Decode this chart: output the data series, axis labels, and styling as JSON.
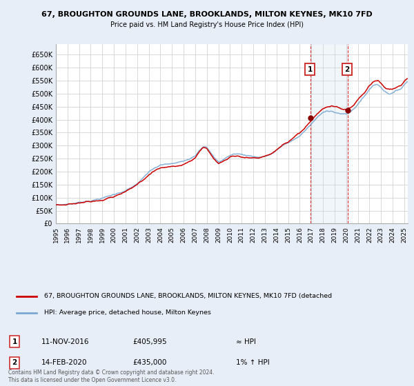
{
  "title": "67, BROUGHTON GROUNDS LANE, BROOKLANDS, MILTON KEYNES, MK10 7FD",
  "subtitle": "Price paid vs. HM Land Registry's House Price Index (HPI)",
  "ylabel_ticks": [
    "£0",
    "£50K",
    "£100K",
    "£150K",
    "£200K",
    "£250K",
    "£300K",
    "£350K",
    "£400K",
    "£450K",
    "£500K",
    "£550K",
    "£600K",
    "£650K"
  ],
  "ytick_values": [
    0,
    50000,
    100000,
    150000,
    200000,
    250000,
    300000,
    350000,
    400000,
    450000,
    500000,
    550000,
    600000,
    650000
  ],
  "ylim": [
    0,
    690000
  ],
  "hpi_color": "#7aa8d2",
  "price_color": "#cc0000",
  "background_color": "#e8eef8",
  "plot_bg_color": "#ffffff",
  "grid_color": "#cccccc",
  "x_start": 1995.0,
  "x_end": 2025.3,
  "sale1_year": 2016.917,
  "sale1_price": 405995,
  "sale2_year": 2020.12,
  "sale2_price": 435000,
  "sale1_date": "11-NOV-2016",
  "sale2_date": "14-FEB-2020",
  "sale1_label": "≈ HPI",
  "sale2_label": "1% ↑ HPI",
  "legend_line1": "67, BROUGHTON GROUNDS LANE, BROOKLANDS, MILTON KEYNES, MK10 7FD (detached",
  "legend_line2": "HPI: Average price, detached house, Milton Keynes",
  "footnote": "Contains HM Land Registry data © Crown copyright and database right 2024.\nThis data is licensed under the Open Government Licence v3.0.",
  "xtick_years": [
    1995,
    1996,
    1997,
    1998,
    1999,
    2000,
    2001,
    2002,
    2003,
    2004,
    2005,
    2006,
    2007,
    2008,
    2009,
    2010,
    2011,
    2012,
    2013,
    2014,
    2015,
    2016,
    2017,
    2018,
    2019,
    2020,
    2021,
    2022,
    2023,
    2024,
    2025
  ]
}
